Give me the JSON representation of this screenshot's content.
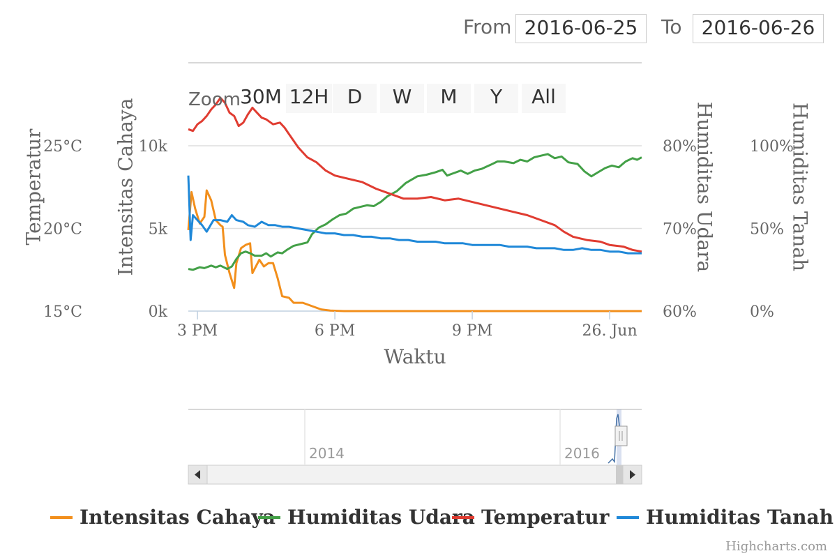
{
  "range_selector": {
    "zoom_label": "Zoom",
    "buttons": [
      "30M",
      "12H",
      "D",
      "W",
      "M",
      "Y",
      "All"
    ],
    "from_label": "From",
    "from_value": "2016-06-25",
    "to_label": "To",
    "to_value": "2016-06-26"
  },
  "navigator": {
    "year_labels": [
      "2014",
      "2016"
    ]
  },
  "credits": "Highcharts.com",
  "colors": {
    "intensitas": "#f28f1c",
    "udara": "#43a047",
    "temperatur": "#e03c31",
    "tanah": "#1f88d8"
  },
  "chart_data": {
    "type": "line",
    "xlabel": "Waktu",
    "x_ticks": [
      "3 PM",
      "6 PM",
      "9 PM",
      "26. Jun"
    ],
    "x_range_hours": [
      14.8,
      24.7
    ],
    "x_tick_hours": [
      15,
      18,
      21,
      24
    ],
    "y_axes": [
      {
        "id": "temperatur",
        "label": "Temperatur",
        "ticks": [
          "15°C",
          "20°C",
          "25°C"
        ],
        "range": [
          15,
          25
        ],
        "unit": "°C"
      },
      {
        "id": "intensitas",
        "label": "Intensitas Cahaya",
        "ticks": [
          "0k",
          "5k",
          "10k"
        ],
        "range": [
          0,
          10000
        ]
      },
      {
        "id": "udara",
        "label": "Humiditas Udara",
        "ticks": [
          "60%",
          "70%",
          "80%"
        ],
        "range": [
          60,
          80
        ],
        "unit": "%"
      },
      {
        "id": "tanah",
        "label": "Humiditas Tanah",
        "ticks": [
          "0%",
          "50%",
          "100%"
        ],
        "range": [
          0,
          100
        ],
        "unit": "%"
      }
    ],
    "legend": [
      "Intensitas Cahaya",
      "Humiditas Udara",
      "Temperatur",
      "Humiditas Tanah"
    ],
    "legend_position": "bottom",
    "series": [
      {
        "name": "Intensitas Cahaya",
        "axis": "intensitas",
        "points": [
          [
            14.8,
            4900
          ],
          [
            14.87,
            7200
          ],
          [
            14.95,
            6200
          ],
          [
            15.05,
            5300
          ],
          [
            15.15,
            5700
          ],
          [
            15.2,
            7300
          ],
          [
            15.3,
            6700
          ],
          [
            15.4,
            5500
          ],
          [
            15.5,
            5200
          ],
          [
            15.55,
            5100
          ],
          [
            15.6,
            3400
          ],
          [
            15.7,
            2300
          ],
          [
            15.8,
            1400
          ],
          [
            15.85,
            2900
          ],
          [
            15.95,
            3800
          ],
          [
            16.05,
            4000
          ],
          [
            16.15,
            4100
          ],
          [
            16.2,
            2300
          ],
          [
            16.35,
            3100
          ],
          [
            16.45,
            2700
          ],
          [
            16.55,
            2900
          ],
          [
            16.65,
            2900
          ],
          [
            16.75,
            2000
          ],
          [
            16.85,
            900
          ],
          [
            17.0,
            800
          ],
          [
            17.1,
            500
          ],
          [
            17.3,
            500
          ],
          [
            17.5,
            300
          ],
          [
            17.7,
            100
          ],
          [
            17.9,
            30
          ],
          [
            18.2,
            0
          ],
          [
            19,
            0
          ],
          [
            20,
            0
          ],
          [
            21,
            0
          ],
          [
            22,
            0
          ],
          [
            23,
            0
          ],
          [
            24,
            0
          ],
          [
            24.7,
            0
          ]
        ]
      },
      {
        "name": "Humiditas Udara",
        "axis": "udara",
        "points": [
          [
            14.8,
            65.1
          ],
          [
            14.9,
            65.0
          ],
          [
            15.05,
            65.3
          ],
          [
            15.15,
            65.2
          ],
          [
            15.3,
            65.5
          ],
          [
            15.4,
            65.3
          ],
          [
            15.5,
            65.5
          ],
          [
            15.65,
            65.1
          ],
          [
            15.75,
            65.4
          ],
          [
            15.85,
            66.3
          ],
          [
            15.95,
            67.0
          ],
          [
            16.05,
            67.2
          ],
          [
            16.15,
            67.0
          ],
          [
            16.25,
            66.7
          ],
          [
            16.4,
            66.7
          ],
          [
            16.5,
            67.0
          ],
          [
            16.6,
            66.6
          ],
          [
            16.75,
            67.1
          ],
          [
            16.85,
            67.0
          ],
          [
            16.95,
            67.4
          ],
          [
            17.1,
            67.9
          ],
          [
            17.25,
            68.1
          ],
          [
            17.4,
            68.3
          ],
          [
            17.5,
            69.3
          ],
          [
            17.65,
            70.1
          ],
          [
            17.8,
            70.5
          ],
          [
            17.95,
            71.1
          ],
          [
            18.1,
            71.6
          ],
          [
            18.25,
            71.8
          ],
          [
            18.4,
            72.4
          ],
          [
            18.55,
            72.6
          ],
          [
            18.7,
            72.8
          ],
          [
            18.85,
            72.7
          ],
          [
            19.0,
            73.2
          ],
          [
            19.15,
            73.9
          ],
          [
            19.35,
            74.5
          ],
          [
            19.55,
            75.5
          ],
          [
            19.8,
            76.3
          ],
          [
            20.0,
            76.5
          ],
          [
            20.2,
            76.8
          ],
          [
            20.35,
            77.1
          ],
          [
            20.45,
            76.4
          ],
          [
            20.6,
            76.7
          ],
          [
            20.75,
            77.0
          ],
          [
            20.9,
            76.6
          ],
          [
            21.05,
            77.0
          ],
          [
            21.2,
            77.2
          ],
          [
            21.4,
            77.7
          ],
          [
            21.55,
            78.1
          ],
          [
            21.7,
            78.1
          ],
          [
            21.9,
            77.9
          ],
          [
            22.05,
            78.3
          ],
          [
            22.2,
            78.1
          ],
          [
            22.35,
            78.6
          ],
          [
            22.5,
            78.8
          ],
          [
            22.65,
            79.0
          ],
          [
            22.8,
            78.5
          ],
          [
            22.95,
            78.7
          ],
          [
            23.1,
            78.0
          ],
          [
            23.3,
            77.8
          ],
          [
            23.45,
            76.9
          ],
          [
            23.6,
            76.3
          ],
          [
            23.75,
            76.8
          ],
          [
            23.9,
            77.3
          ],
          [
            24.05,
            77.6
          ],
          [
            24.2,
            77.4
          ],
          [
            24.35,
            78.1
          ],
          [
            24.5,
            78.5
          ],
          [
            24.6,
            78.3
          ],
          [
            24.7,
            78.6
          ]
        ]
      },
      {
        "name": "Temperatur",
        "axis": "temperatur",
        "points": [
          [
            14.8,
            26.0
          ],
          [
            14.9,
            25.9
          ],
          [
            15.0,
            26.3
          ],
          [
            15.1,
            26.5
          ],
          [
            15.2,
            26.8
          ],
          [
            15.3,
            27.2
          ],
          [
            15.4,
            27.5
          ],
          [
            15.5,
            27.9
          ],
          [
            15.6,
            27.6
          ],
          [
            15.7,
            27.0
          ],
          [
            15.8,
            26.8
          ],
          [
            15.9,
            26.2
          ],
          [
            16.0,
            26.4
          ],
          [
            16.1,
            26.9
          ],
          [
            16.2,
            27.3
          ],
          [
            16.3,
            27.0
          ],
          [
            16.4,
            26.7
          ],
          [
            16.5,
            26.6
          ],
          [
            16.65,
            26.3
          ],
          [
            16.8,
            26.4
          ],
          [
            16.9,
            26.1
          ],
          [
            17.0,
            25.7
          ],
          [
            17.2,
            24.9
          ],
          [
            17.4,
            24.3
          ],
          [
            17.6,
            24.0
          ],
          [
            17.8,
            23.5
          ],
          [
            18.0,
            23.2
          ],
          [
            18.3,
            23.0
          ],
          [
            18.6,
            22.8
          ],
          [
            18.9,
            22.4
          ],
          [
            19.2,
            22.1
          ],
          [
            19.5,
            21.8
          ],
          [
            19.8,
            21.8
          ],
          [
            20.1,
            21.9
          ],
          [
            20.4,
            21.7
          ],
          [
            20.7,
            21.8
          ],
          [
            21.0,
            21.6
          ],
          [
            21.3,
            21.4
          ],
          [
            21.6,
            21.2
          ],
          [
            21.9,
            21.0
          ],
          [
            22.2,
            20.8
          ],
          [
            22.5,
            20.5
          ],
          [
            22.8,
            20.2
          ],
          [
            23.0,
            19.8
          ],
          [
            23.2,
            19.5
          ],
          [
            23.5,
            19.3
          ],
          [
            23.8,
            19.2
          ],
          [
            24.0,
            19.0
          ],
          [
            24.3,
            18.9
          ],
          [
            24.5,
            18.7
          ],
          [
            24.7,
            18.6
          ]
        ]
      },
      {
        "name": "Humiditas Tanah",
        "axis": "tanah",
        "points": [
          [
            14.8,
            82
          ],
          [
            14.85,
            43
          ],
          [
            14.9,
            58
          ],
          [
            15.0,
            55
          ],
          [
            15.1,
            52
          ],
          [
            15.2,
            48
          ],
          [
            15.35,
            55
          ],
          [
            15.5,
            55
          ],
          [
            15.65,
            54
          ],
          [
            15.75,
            58
          ],
          [
            15.85,
            55
          ],
          [
            16.0,
            54
          ],
          [
            16.1,
            52
          ],
          [
            16.25,
            51
          ],
          [
            16.4,
            54
          ],
          [
            16.55,
            52
          ],
          [
            16.7,
            52
          ],
          [
            16.85,
            51
          ],
          [
            17.0,
            51
          ],
          [
            17.2,
            50
          ],
          [
            17.4,
            49
          ],
          [
            17.6,
            48
          ],
          [
            17.8,
            47
          ],
          [
            18.0,
            47
          ],
          [
            18.2,
            46
          ],
          [
            18.4,
            46
          ],
          [
            18.6,
            45
          ],
          [
            18.8,
            45
          ],
          [
            19.0,
            44
          ],
          [
            19.2,
            44
          ],
          [
            19.4,
            43
          ],
          [
            19.6,
            43
          ],
          [
            19.8,
            42
          ],
          [
            20.0,
            42
          ],
          [
            20.2,
            42
          ],
          [
            20.4,
            41
          ],
          [
            20.6,
            41
          ],
          [
            20.8,
            41
          ],
          [
            21.0,
            40
          ],
          [
            21.2,
            40
          ],
          [
            21.4,
            40
          ],
          [
            21.6,
            40
          ],
          [
            21.8,
            39
          ],
          [
            22.0,
            39
          ],
          [
            22.2,
            39
          ],
          [
            22.4,
            38
          ],
          [
            22.6,
            38
          ],
          [
            22.8,
            38
          ],
          [
            23.0,
            37
          ],
          [
            23.2,
            37
          ],
          [
            23.4,
            38
          ],
          [
            23.6,
            37
          ],
          [
            23.8,
            37
          ],
          [
            24.0,
            36
          ],
          [
            24.2,
            36
          ],
          [
            24.4,
            35
          ],
          [
            24.6,
            35
          ],
          [
            24.7,
            35
          ]
        ]
      }
    ]
  }
}
